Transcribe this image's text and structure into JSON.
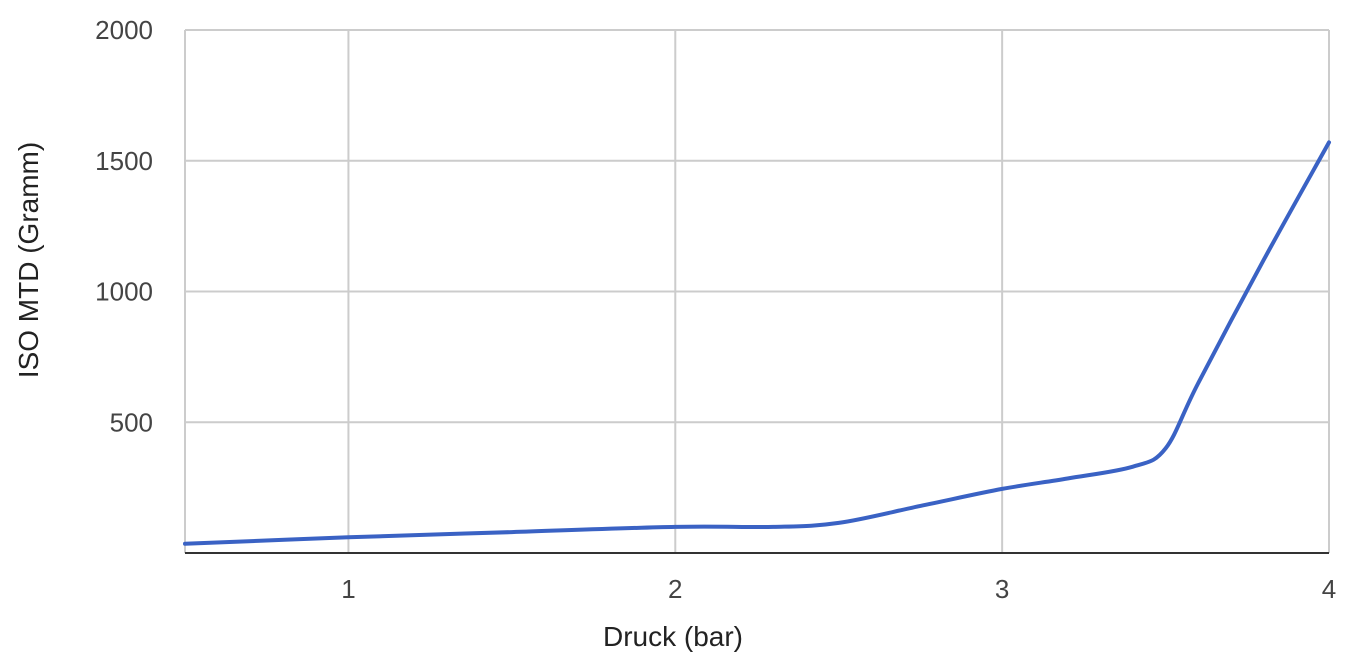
{
  "chart_data": {
    "type": "line",
    "title": "",
    "xlabel": "Druck (bar)",
    "ylabel": "ISO MTD (Gramm)",
    "xlim": [
      0.5,
      4
    ],
    "ylim": [
      0,
      2000
    ],
    "grid": true,
    "legend": "none",
    "x_ticks": [
      1,
      2,
      3,
      4
    ],
    "x_tick_labels": [
      "1",
      "2",
      "3",
      "4"
    ],
    "y_ticks": [
      500,
      1000,
      1500,
      2000
    ],
    "y_tick_labels": [
      "500",
      "1000",
      "1500",
      "2000"
    ],
    "series": [
      {
        "color": "#3a62c4",
        "x": [
          0.5,
          1.0,
          1.5,
          2.0,
          2.3,
          2.5,
          2.75,
          3.0,
          3.2,
          3.4,
          3.5,
          3.6,
          3.8,
          4.0
        ],
        "y": [
          35,
          60,
          80,
          100,
          100,
          115,
          180,
          245,
          285,
          330,
          400,
          650,
          1120,
          1570
        ]
      }
    ]
  }
}
